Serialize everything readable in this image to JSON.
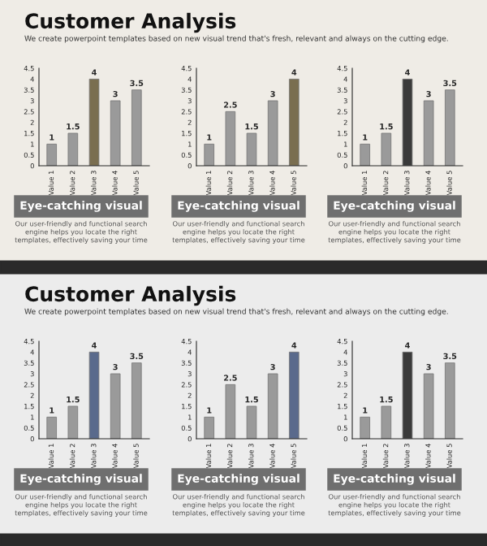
{
  "chart_data": [
    {
      "type": "bar",
      "title": "Customer Analysis",
      "subtitle": "We create powerpoint templates based on new visual trend that's fresh, relevant and always on the cutting edge.",
      "categories": [
        "Value 1",
        "Value 2",
        "Value 3",
        "Value 4",
        "Value 5"
      ],
      "values": [
        1,
        1.5,
        4,
        3,
        3.5
      ],
      "colors": [
        "#9a9a9a",
        "#9a9a9a",
        "#7a6e50",
        "#9a9a9a",
        "#9a9a9a"
      ],
      "ylim": [
        0,
        4.5
      ],
      "yticks": [
        0,
        0.5,
        1,
        1.5,
        2,
        2.5,
        3,
        3.5,
        4,
        4.5
      ],
      "data_labels": true,
      "grid": false,
      "annotations": [
        "Eye-catching visual",
        "Our user-friendly and functional search engine helps you locate the right templates, effectively saving your time"
      ]
    },
    {
      "type": "bar",
      "categories": [
        "Value 1",
        "Value 2",
        "Value 3",
        "Value 4",
        "Value 5"
      ],
      "values": [
        1,
        2.5,
        1.5,
        3,
        4
      ],
      "colors": [
        "#9a9a9a",
        "#9a9a9a",
        "#9a9a9a",
        "#9a9a9a",
        "#7a6e50"
      ],
      "ylim": [
        0,
        4.5
      ],
      "yticks": [
        0,
        0.5,
        1,
        1.5,
        2,
        2.5,
        3,
        3.5,
        4,
        4.5
      ],
      "data_labels": true,
      "grid": false,
      "annotations": [
        "Eye-catching visual",
        "Our user-friendly and functional search engine helps you locate the right templates, effectively saving your time"
      ]
    },
    {
      "type": "bar",
      "categories": [
        "Value 1",
        "Value 2",
        "Value 3",
        "Value 4",
        "Value 5"
      ],
      "values": [
        1,
        1.5,
        4,
        3,
        3.5
      ],
      "colors": [
        "#9a9a9a",
        "#9a9a9a",
        "#3a3a3a",
        "#9a9a9a",
        "#9a9a9a"
      ],
      "ylim": [
        0,
        4.5
      ],
      "yticks": [
        0,
        0.5,
        1,
        1.5,
        2,
        2.5,
        3,
        3.5,
        4,
        4.5
      ],
      "data_labels": true,
      "grid": false,
      "annotations": [
        "Eye-catching visual",
        "Our user-friendly and functional search engine helps you locate the right templates, effectively saving your time"
      ]
    },
    {
      "type": "bar",
      "title": "Customer Analysis",
      "subtitle": "We create powerpoint templates based on new visual trend that's fresh, relevant and always on the cutting edge.",
      "categories": [
        "Value 1",
        "Value 2",
        "Value 3",
        "Value 4",
        "Value 5"
      ],
      "values": [
        1,
        1.5,
        4,
        3,
        3.5
      ],
      "colors": [
        "#9a9a9a",
        "#9a9a9a",
        "#5a6a8c",
        "#9a9a9a",
        "#9a9a9a"
      ],
      "ylim": [
        0,
        4.5
      ],
      "yticks": [
        0,
        0.5,
        1,
        1.5,
        2,
        2.5,
        3,
        3.5,
        4,
        4.5
      ],
      "data_labels": true,
      "grid": false,
      "annotations": [
        "Eye-catching visual",
        "Our user-friendly and functional search engine helps you locate the right templates, effectively saving your time"
      ]
    },
    {
      "type": "bar",
      "categories": [
        "Value 1",
        "Value 2",
        "Value 3",
        "Value 4",
        "Value 5"
      ],
      "values": [
        1,
        2.5,
        1.5,
        3,
        4
      ],
      "colors": [
        "#9a9a9a",
        "#9a9a9a",
        "#9a9a9a",
        "#9a9a9a",
        "#5a6a8c"
      ],
      "ylim": [
        0,
        4.5
      ],
      "yticks": [
        0,
        0.5,
        1,
        1.5,
        2,
        2.5,
        3,
        3.5,
        4,
        4.5
      ],
      "data_labels": true,
      "grid": false,
      "annotations": [
        "Eye-catching visual",
        "Our user-friendly and functional search engine helps you locate the right templates, effectively saving your time"
      ]
    },
    {
      "type": "bar",
      "categories": [
        "Value 1",
        "Value 2",
        "Value 3",
        "Value 4",
        "Value 5"
      ],
      "values": [
        1,
        1.5,
        4,
        3,
        3.5
      ],
      "colors": [
        "#9a9a9a",
        "#9a9a9a",
        "#3a3a3a",
        "#9a9a9a",
        "#9a9a9a"
      ],
      "ylim": [
        0,
        4.5
      ],
      "yticks": [
        0,
        0.5,
        1,
        1.5,
        2,
        2.5,
        3,
        3.5,
        4,
        4.5
      ],
      "data_labels": true,
      "grid": false,
      "annotations": [
        "Eye-catching visual",
        "Our user-friendly and functional search engine helps you locate the right templates, effectively saving your time"
      ]
    }
  ]
}
